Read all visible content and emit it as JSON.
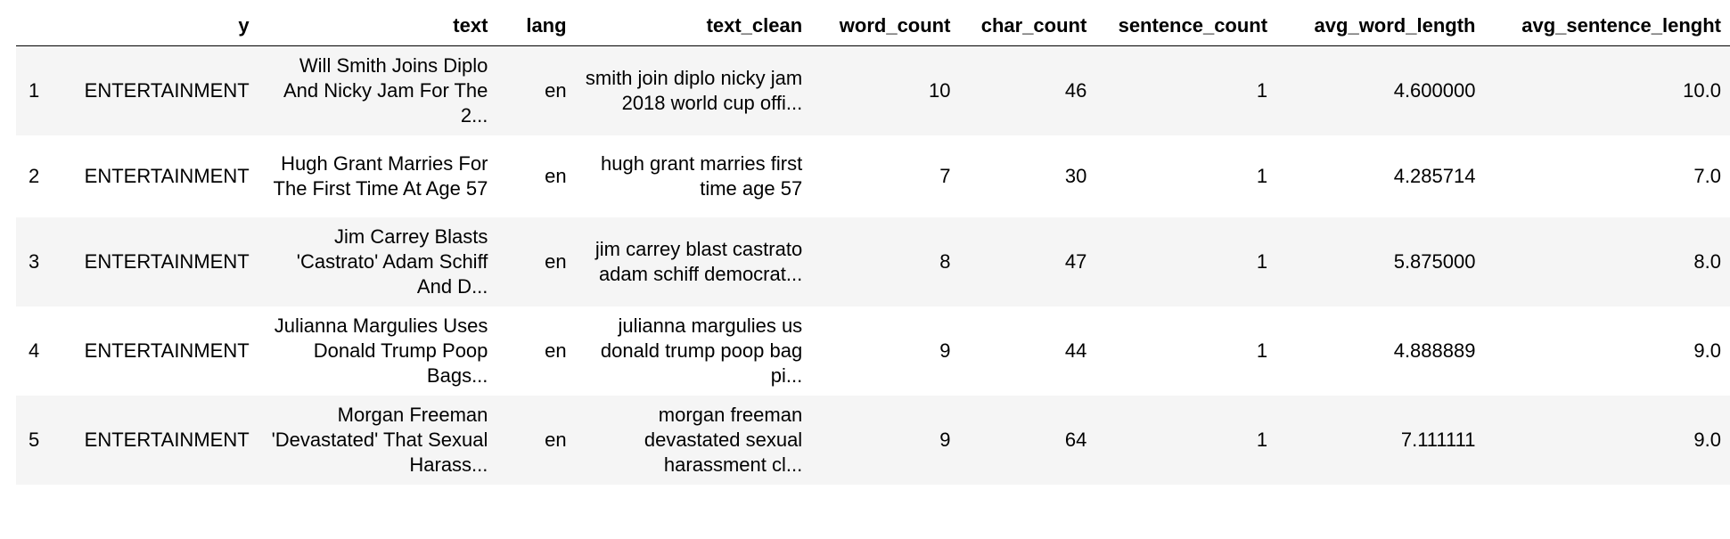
{
  "columns": {
    "index": "",
    "y": "y",
    "text": "text",
    "lang": "lang",
    "text_clean": "text_clean",
    "word_count": "word_count",
    "char_count": "char_count",
    "sentence_count": "sentence_count",
    "avg_word_length": "avg_word_length",
    "avg_sentence_lenght": "avg_sentence_lenght"
  },
  "rows": [
    {
      "index": "1",
      "y": "ENTERTAINMENT",
      "text": "Will Smith Joins Diplo And Nicky Jam For The 2...",
      "lang": "en",
      "text_clean": "smith join diplo nicky jam 2018 world cup offi...",
      "word_count": "10",
      "char_count": "46",
      "sentence_count": "1",
      "avg_word_length": "4.600000",
      "avg_sentence_lenght": "10.0"
    },
    {
      "index": "2",
      "y": "ENTERTAINMENT",
      "text": "Hugh Grant Marries For The First Time At Age 57",
      "lang": "en",
      "text_clean": "hugh grant marries first time age 57",
      "word_count": "7",
      "char_count": "30",
      "sentence_count": "1",
      "avg_word_length": "4.285714",
      "avg_sentence_lenght": "7.0"
    },
    {
      "index": "3",
      "y": "ENTERTAINMENT",
      "text": "Jim Carrey Blasts 'Castrato' Adam Schiff And D...",
      "lang": "en",
      "text_clean": "jim carrey blast castrato adam schiff democrat...",
      "word_count": "8",
      "char_count": "47",
      "sentence_count": "1",
      "avg_word_length": "5.875000",
      "avg_sentence_lenght": "8.0"
    },
    {
      "index": "4",
      "y": "ENTERTAINMENT",
      "text": "Julianna Margulies Uses Donald Trump Poop Bags...",
      "lang": "en",
      "text_clean": "julianna margulies us donald trump poop bag pi...",
      "word_count": "9",
      "char_count": "44",
      "sentence_count": "1",
      "avg_word_length": "4.888889",
      "avg_sentence_lenght": "9.0"
    },
    {
      "index": "5",
      "y": "ENTERTAINMENT",
      "text": "Morgan Freeman 'Devastated' That Sexual Harass...",
      "lang": "en",
      "text_clean": "morgan freeman devastated sexual harassment cl...",
      "word_count": "9",
      "char_count": "64",
      "sentence_count": "1",
      "avg_word_length": "7.111111",
      "avg_sentence_lenght": "9.0"
    }
  ]
}
